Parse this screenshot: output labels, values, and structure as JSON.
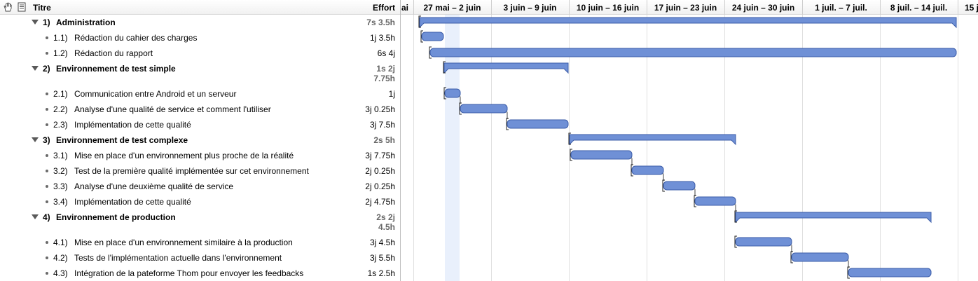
{
  "header": {
    "title_label": "Titre",
    "effort_label": "Effort",
    "icons": [
      "hand-icon",
      "note-icon"
    ]
  },
  "timeline": {
    "weeks": [
      "ai",
      "27 mai – 2 juin",
      "3 juin – 9 juin",
      "10 juin – 16 juin",
      "17 juin – 23 juin",
      "24 juin – 30 juin",
      "1 juil. – 7 juil.",
      "8 juil. – 14 juil.",
      "15 j"
    ]
  },
  "colors": {
    "bar_fill": "#6f90d6",
    "bar_border": "#3b5ca8",
    "today_band": "#e9f0fc",
    "dependency_line": "#a0a0a0"
  },
  "rows": [
    {
      "kind": "group",
      "num": "1)",
      "title": "Administration",
      "effort": "7s 3.5h"
    },
    {
      "kind": "task",
      "num": "1.1)",
      "title": "Rédaction du cahier des charges",
      "effort": "1j 3.5h"
    },
    {
      "kind": "task",
      "num": "1.2)",
      "title": "Rédaction du rapport",
      "effort": "6s 4j"
    },
    {
      "kind": "group",
      "num": "2)",
      "title": "Environnement de test simple",
      "effort": "1s 2j\n7.75h"
    },
    {
      "kind": "task",
      "num": "2.1)",
      "title": "Communication entre Android et un serveur",
      "effort": "1j"
    },
    {
      "kind": "task",
      "num": "2.2)",
      "title": "Analyse d'une qualité de service et comment l'utiliser",
      "effort": "3j 0.25h"
    },
    {
      "kind": "task",
      "num": "2.3)",
      "title": "Implémentation de cette qualité",
      "effort": "3j 7.5h"
    },
    {
      "kind": "group",
      "num": "3)",
      "title": "Environnement de test complexe",
      "effort": "2s 5h"
    },
    {
      "kind": "task",
      "num": "3.1)",
      "title": "Mise en place d'un environnement plus proche de la réalité",
      "effort": "3j 7.75h"
    },
    {
      "kind": "task",
      "num": "3.2)",
      "title": "Test de la première qualité implémentée sur cet environnement",
      "effort": "2j 0.25h"
    },
    {
      "kind": "task",
      "num": "3.3)",
      "title": "Analyse d'une deuxième qualité de service",
      "effort": "2j 0.25h"
    },
    {
      "kind": "task",
      "num": "3.4)",
      "title": "Implémentation de cette qualité",
      "effort": "2j 4.75h"
    },
    {
      "kind": "group",
      "num": "4)",
      "title": "Environnement de production",
      "effort": "2s 2j\n4.5h"
    },
    {
      "kind": "task",
      "num": "4.1)",
      "title": "Mise en place d'un environnement similaire à la production",
      "effort": "3j 4.5h"
    },
    {
      "kind": "task",
      "num": "4.2)",
      "title": "Tests de l'implémentation actuelle dans l'environnement",
      "effort": "3j 5.5h"
    },
    {
      "kind": "task",
      "num": "4.3)",
      "title": "Intégration de la pateforme Thom pour envoyer les feedbacks",
      "effort": "1s 2.5h"
    }
  ]
}
